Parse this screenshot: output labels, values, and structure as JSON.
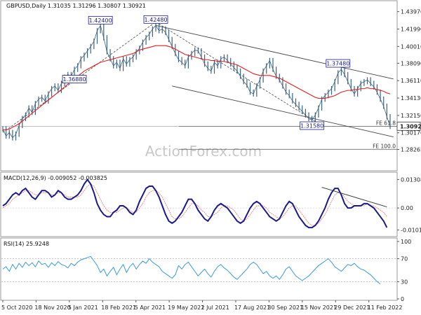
{
  "header": {
    "title": "GBPUSD,Daily  1.31035 1.31296 1.30807 1.30921"
  },
  "watermark": "ActionForex.com",
  "chart_data": {
    "type": "line",
    "instrument": "GBPUSD",
    "timeframe": "Daily",
    "ohlc": {
      "open": 1.31035,
      "high": 1.31296,
      "low": 1.30807,
      "close": 1.30921
    },
    "x_tick_labels": [
      "5 Oct 2020",
      "18 Nov 2020",
      "5 Jan 2021",
      "18 Feb 2021",
      "5 Apr 2021",
      "19 May 2021",
      "2 Jul 2021",
      "17 Aug 2021",
      "30 Sep 2021",
      "15 Nov 2021",
      "29 Dec 2021",
      "11 Feb 2022"
    ],
    "price_panel": {
      "ylim": [
        1.26,
        1.445
      ],
      "y_ticks": [
        "1.43970",
        "1.41990",
        "1.40010",
        "1.38090",
        "1.36110",
        "1.34130",
        "1.32150",
        "1.30170",
        "1.28265"
      ],
      "current_price_label": "1.30921",
      "current_price": 1.30921,
      "price_series": [
        1.306,
        1.298,
        1.302,
        1.296,
        1.3,
        1.31,
        1.318,
        1.322,
        1.33,
        1.325,
        1.335,
        1.34,
        1.342,
        1.338,
        1.346,
        1.352,
        1.355,
        1.35,
        1.358,
        1.365,
        1.368,
        1.366,
        1.374,
        1.378,
        1.386,
        1.39,
        1.395,
        1.4,
        1.406,
        1.418,
        1.424,
        1.41,
        1.394,
        1.386,
        1.378,
        1.382,
        1.375,
        1.386,
        1.38,
        1.385,
        1.388,
        1.394,
        1.398,
        1.405,
        1.41,
        1.414,
        1.42,
        1.424,
        1.418,
        1.42,
        1.416,
        1.408,
        1.4,
        1.392,
        1.385,
        1.382,
        1.378,
        1.388,
        1.392,
        1.396,
        1.395,
        1.388,
        1.38,
        1.375,
        1.372,
        1.382,
        1.378,
        1.386,
        1.388,
        1.384,
        1.38,
        1.376,
        1.372,
        1.366,
        1.36,
        1.356,
        1.348,
        1.346,
        1.355,
        1.362,
        1.372,
        1.378,
        1.384,
        1.374,
        1.366,
        1.362,
        1.355,
        1.348,
        1.344,
        1.338,
        1.334,
        1.33,
        1.326,
        1.322,
        1.318,
        1.316,
        1.322,
        1.33,
        1.34,
        1.344,
        1.348,
        1.352,
        1.36,
        1.37,
        1.374,
        1.368,
        1.36,
        1.352,
        1.346,
        1.352,
        1.358,
        1.36,
        1.362,
        1.358,
        1.354,
        1.348,
        1.34,
        1.332,
        1.32,
        1.309
      ],
      "ma_series": [
        1.305,
        1.305,
        1.306,
        1.308,
        1.31,
        1.312,
        1.315,
        1.318,
        1.321,
        1.324,
        1.327,
        1.33,
        1.333,
        1.336,
        1.339,
        1.342,
        1.345,
        1.348,
        1.351,
        1.354,
        1.357,
        1.36,
        1.363,
        1.366,
        1.369,
        1.372,
        1.374,
        1.376,
        1.378,
        1.38,
        1.382,
        1.383,
        1.384,
        1.385,
        1.386,
        1.387,
        1.388,
        1.389,
        1.39,
        1.391,
        1.392,
        1.394,
        1.396,
        1.397,
        1.398,
        1.399,
        1.4,
        1.401,
        1.401,
        1.401,
        1.401,
        1.4,
        1.399,
        1.397,
        1.395,
        1.393,
        1.391,
        1.39,
        1.389,
        1.388,
        1.387,
        1.386,
        1.385,
        1.385,
        1.384,
        1.384,
        1.383,
        1.383,
        1.383,
        1.382,
        1.381,
        1.38,
        1.379,
        1.377,
        1.375,
        1.373,
        1.371,
        1.369,
        1.368,
        1.367,
        1.367,
        1.367,
        1.367,
        1.366,
        1.365,
        1.364,
        1.362,
        1.36,
        1.358,
        1.356,
        1.354,
        1.352,
        1.35,
        1.348,
        1.346,
        1.344,
        1.342,
        1.341,
        1.341,
        1.341,
        1.342,
        1.343,
        1.344,
        1.346,
        1.348,
        1.349,
        1.35,
        1.35,
        1.351,
        1.351,
        1.352,
        1.352,
        1.353,
        1.352,
        1.352,
        1.351,
        1.35,
        1.349,
        1.347,
        1.346
      ],
      "annotations": [
        {
          "label": "1.42400",
          "x": 30,
          "y": 1.424
        },
        {
          "label": "1.42480",
          "x": 47,
          "y": 1.4248
        },
        {
          "label": "1.36880",
          "x": 22,
          "y": 1.3688
        },
        {
          "label": "1.37480",
          "x": 103,
          "y": 1.3748
        },
        {
          "label": "1.31580",
          "x": 95,
          "y": 1.3158
        }
      ],
      "channel_lines": [
        {
          "from": [
            47,
            1.424
          ],
          "to": [
            120,
            1.363
          ]
        },
        {
          "from": [
            52,
            1.355
          ],
          "to": [
            120,
            1.297
          ]
        }
      ],
      "dashed_lines": [
        {
          "from": [
            0,
            1.302
          ],
          "to": [
            47,
            1.428
          ]
        },
        {
          "from": [
            47,
            1.428
          ],
          "to": [
            98,
            1.31
          ]
        }
      ],
      "fe_levels": [
        {
          "label": "FE 61.8",
          "value": 1.309
        },
        {
          "label": "FE 100.0",
          "value": 1.2829
        }
      ]
    },
    "macd_panel": {
      "label": "MACD(12,26,9) -0.009052 -0.003825",
      "ylim": [
        -0.0125,
        0.0145
      ],
      "y_ticks": [
        "0.013086",
        "0.00",
        "-0.010106"
      ],
      "macd_series": [
        0.001,
        0.002,
        0.004,
        0.006,
        0.007,
        0.006,
        0.008,
        0.009,
        0.007,
        0.005,
        0.004,
        0.006,
        0.008,
        0.008,
        0.007,
        0.005,
        0.006,
        0.008,
        0.007,
        0.005,
        0.004,
        0.004,
        0.005,
        0.006,
        0.008,
        0.011,
        0.013,
        0.011,
        0.007,
        0.002,
        -0.001,
        -0.003,
        -0.004,
        -0.004,
        -0.002,
        -0.001,
        0.001,
        0.001,
        0.0,
        -0.002,
        -0.003,
        -0.001,
        0.003,
        0.006,
        0.009,
        0.01,
        0.01,
        0.008,
        0.005,
        0.001,
        -0.003,
        -0.006,
        -0.007,
        -0.006,
        -0.004,
        -0.002,
        0.001,
        0.004,
        0.004,
        0.002,
        -0.001,
        -0.003,
        -0.005,
        -0.006,
        -0.004,
        -0.001,
        0.001,
        0.002,
        0.001,
        0.0,
        -0.002,
        -0.004,
        -0.006,
        -0.007,
        -0.006,
        -0.003,
        0.0,
        0.002,
        0.003,
        0.002,
        0.0,
        -0.002,
        -0.004,
        -0.005,
        -0.006,
        -0.005,
        -0.002,
        0.001,
        0.003,
        0.002,
        -0.001,
        -0.004,
        -0.006,
        -0.008,
        -0.009,
        -0.009,
        -0.008,
        -0.006,
        -0.003,
        0.0,
        0.004,
        0.007,
        0.009,
        0.009,
        0.006,
        0.002,
        0.0,
        0.0,
        0.001,
        0.001,
        0.001,
        0.002,
        0.002,
        0.001,
        0.0,
        -0.002,
        -0.004,
        -0.006,
        -0.009
      ],
      "signal_series": [
        0.0,
        0.001,
        0.002,
        0.004,
        0.005,
        0.006,
        0.007,
        0.008,
        0.008,
        0.007,
        0.006,
        0.006,
        0.007,
        0.007,
        0.007,
        0.006,
        0.006,
        0.007,
        0.007,
        0.006,
        0.005,
        0.005,
        0.005,
        0.005,
        0.006,
        0.008,
        0.01,
        0.011,
        0.01,
        0.007,
        0.004,
        0.001,
        -0.001,
        -0.002,
        -0.002,
        -0.002,
        -0.001,
        0.0,
        0.0,
        -0.001,
        -0.002,
        -0.002,
        0.0,
        0.002,
        0.005,
        0.007,
        0.008,
        0.008,
        0.007,
        0.005,
        0.002,
        -0.001,
        -0.004,
        -0.005,
        -0.005,
        -0.004,
        -0.002,
        0.0,
        0.002,
        0.002,
        0.001,
        -0.001,
        -0.002,
        -0.004,
        -0.004,
        -0.003,
        -0.002,
        0.0,
        0.001,
        0.001,
        0.0,
        -0.001,
        -0.003,
        -0.005,
        -0.006,
        -0.005,
        -0.003,
        -0.001,
        0.001,
        0.001,
        0.001,
        0.0,
        -0.002,
        -0.003,
        -0.004,
        -0.005,
        -0.004,
        -0.002,
        0.0,
        0.001,
        0.001,
        -0.001,
        -0.003,
        -0.005,
        -0.007,
        -0.008,
        -0.008,
        -0.007,
        -0.005,
        -0.003,
        0.0,
        0.003,
        0.006,
        0.007,
        0.007,
        0.005,
        0.003,
        0.002,
        0.001,
        0.001,
        0.001,
        0.001,
        0.002,
        0.001,
        0.001,
        0.0,
        -0.001,
        -0.002,
        -0.004
      ],
      "trendline": {
        "from": [
          98,
          0.0095
        ],
        "to": [
          118,
          0.0005
        ]
      }
    },
    "rsi_panel": {
      "label": "RSI(14) 25.9248",
      "ylim": [
        0,
        100
      ],
      "y_ticks": [
        "100",
        "70",
        "30",
        "0"
      ],
      "levels": [
        70,
        30
      ],
      "rsi_series": [
        52,
        56,
        48,
        60,
        52,
        62,
        55,
        64,
        58,
        63,
        56,
        66,
        60,
        62,
        55,
        63,
        58,
        65,
        60,
        58,
        54,
        62,
        58,
        64,
        68,
        70,
        72,
        74,
        66,
        58,
        46,
        52,
        40,
        48,
        55,
        42,
        52,
        60,
        46,
        56,
        62,
        52,
        60,
        66,
        62,
        70,
        64,
        60,
        56,
        48,
        44,
        40,
        36,
        42,
        58,
        52,
        60,
        64,
        56,
        48,
        40,
        46,
        52,
        44,
        38,
        48,
        56,
        60,
        54,
        50,
        44,
        38,
        34,
        40,
        46,
        52,
        60,
        64,
        60,
        52,
        44,
        48,
        40,
        36,
        40,
        34,
        42,
        52,
        56,
        48,
        40,
        36,
        32,
        36,
        40,
        46,
        52,
        58,
        62,
        66,
        70,
        64,
        56,
        52,
        48,
        54,
        60,
        58,
        62,
        56,
        52,
        50,
        46,
        42,
        36,
        30,
        26
      ]
    }
  }
}
